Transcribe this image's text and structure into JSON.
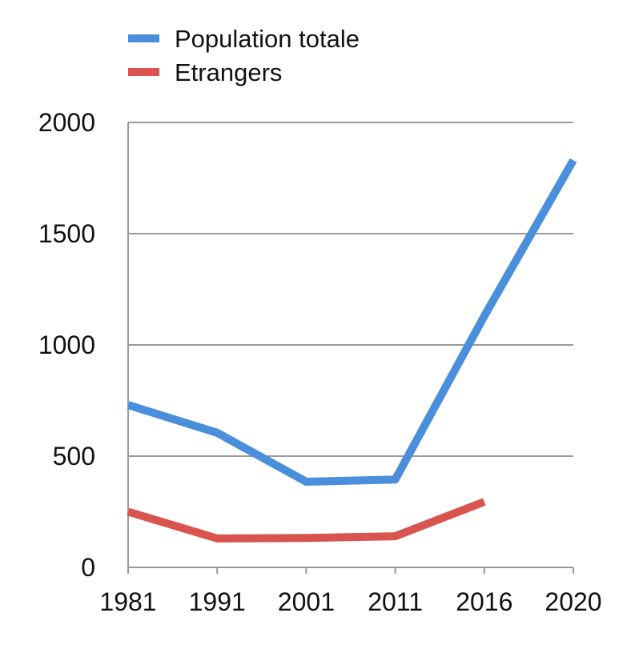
{
  "chart_data": {
    "type": "line",
    "title": "",
    "xlabel": "",
    "ylabel": "",
    "categories": [
      "1981",
      "1991",
      "2001",
      "2011",
      "2016",
      "2020"
    ],
    "ylim": [
      0,
      2000
    ],
    "yticks": [
      0,
      500,
      1000,
      1500,
      2000
    ],
    "grid": true,
    "legend_position": "top-left",
    "series": [
      {
        "name": "Population totale",
        "color": "#4A8FDB",
        "values": [
          730,
          605,
          385,
          395,
          1130,
          1830
        ]
      },
      {
        "name": "Etrangers",
        "color": "#D9534F",
        "values": [
          250,
          130,
          132,
          140,
          295,
          null
        ]
      }
    ]
  }
}
